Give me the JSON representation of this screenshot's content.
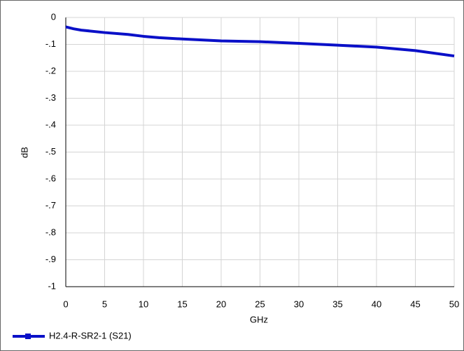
{
  "chart_data": {
    "type": "line",
    "xlabel": "GHz",
    "ylabel": "dB",
    "x": [
      0,
      1,
      2,
      5,
      8,
      10,
      12,
      15,
      20,
      25,
      30,
      35,
      40,
      45,
      50
    ],
    "series": [
      {
        "name": "H2.4-R-SR2-1 (S21)",
        "color": "#0a10c8",
        "values": [
          -0.035,
          -0.042,
          -0.047,
          -0.056,
          -0.063,
          -0.07,
          -0.075,
          -0.08,
          -0.087,
          -0.09,
          -0.096,
          -0.103,
          -0.11,
          -0.123,
          -0.143
        ]
      }
    ],
    "xlim": [
      0,
      50
    ],
    "xticks": [
      0,
      5,
      10,
      15,
      20,
      25,
      30,
      35,
      40,
      45,
      50
    ],
    "ylim": [
      -1,
      0
    ],
    "yticks": [
      0,
      {
        "value": -0.1,
        "label": "-.1"
      },
      {
        "value": -0.2,
        "label": "-.2"
      },
      {
        "value": -0.3,
        "label": "-.3"
      },
      {
        "value": -0.4,
        "label": "-.4"
      },
      {
        "value": -0.5,
        "label": "-.5"
      },
      {
        "value": -0.6,
        "label": "-.6"
      },
      {
        "value": -0.7,
        "label": "-.7"
      },
      {
        "value": -0.8,
        "label": "-.8"
      },
      {
        "value": -0.9,
        "label": "-.9"
      },
      -1
    ],
    "grid": true,
    "legend": "bottom-left"
  }
}
